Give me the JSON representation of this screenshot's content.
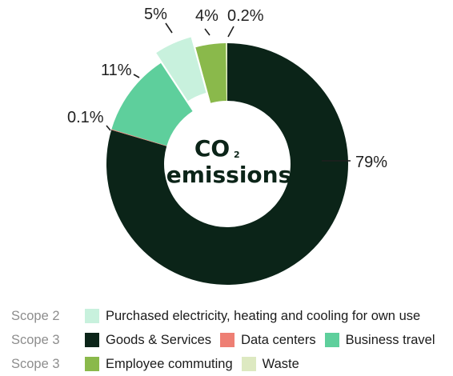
{
  "chart_data": {
    "type": "pie",
    "variant": "donut",
    "center_label_line1": "CO",
    "center_label_sub": "2",
    "center_label_line2": "emissions",
    "slices": [
      {
        "name": "Goods & Services",
        "value": 79,
        "label": "79%",
        "color": "#0b2418"
      },
      {
        "name": "Data centers",
        "value": 0.1,
        "label": "0.1%",
        "color": "#ee7f74"
      },
      {
        "name": "Business travel",
        "value": 11,
        "label": "11%",
        "color": "#5ecf9c"
      },
      {
        "name": "Purchased electricity, heating and cooling for own use",
        "value": 5,
        "label": "5%",
        "color": "#c8f1dd",
        "exploded": true
      },
      {
        "name": "Employee commuting",
        "value": 4,
        "label": "4%",
        "color": "#8ab94b"
      },
      {
        "name": "Waste",
        "value": 0.2,
        "label": "0.2%",
        "color": "#dde9c1"
      }
    ]
  },
  "legend": {
    "rows": [
      {
        "scope": "Scope 2",
        "items": [
          {
            "label": "Purchased electricity, heating and cooling for own use",
            "color": "#c8f1dd"
          }
        ]
      },
      {
        "scope": "Scope 3",
        "items": [
          {
            "label": "Goods & Services",
            "color": "#0b2418"
          },
          {
            "label": "Data centers",
            "color": "#ee7f74"
          },
          {
            "label": "Business travel",
            "color": "#5ecf9c"
          }
        ]
      },
      {
        "scope": "Scope 3",
        "items": [
          {
            "label": "Employee commuting",
            "color": "#8ab94b"
          },
          {
            "label": "Waste",
            "color": "#dde9c1"
          }
        ]
      }
    ]
  }
}
